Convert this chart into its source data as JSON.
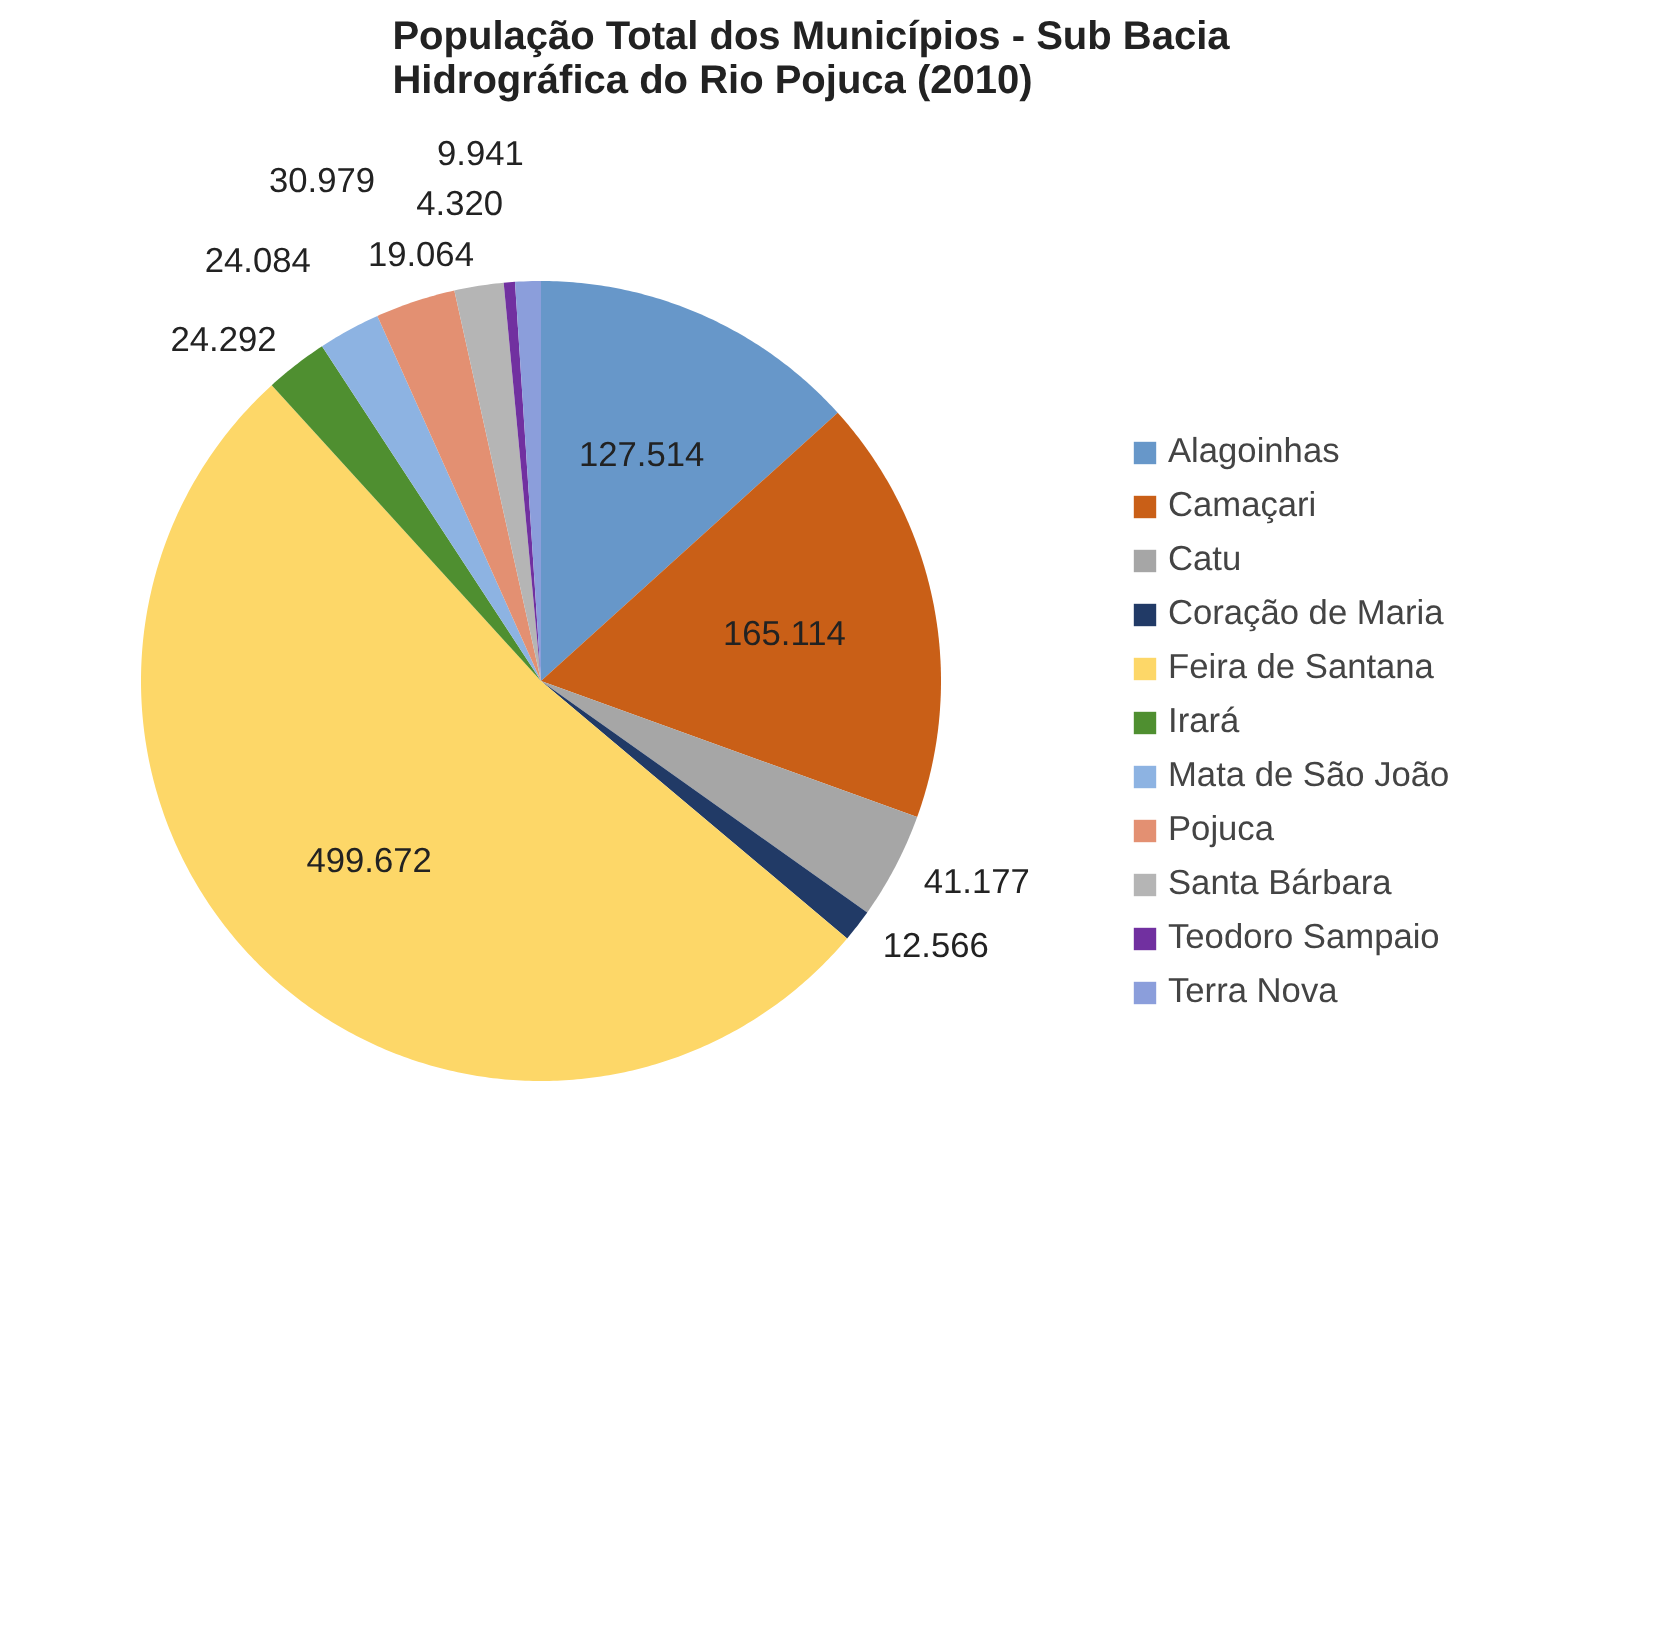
{
  "chart_data": {
    "type": "pie",
    "title": "População Total dos Municípios - Sub Bacia\nHidrográfica do Rio Pojuca (2010)",
    "categories": [
      "Alagoinhas",
      "Camaçari",
      "Catu",
      "Coração de Maria",
      "Feira de Santana",
      "Irará",
      "Mata de São João",
      "Pojuca",
      "Santa Bárbara",
      "Teodoro Sampaio",
      "Terra Nova"
    ],
    "values": [
      127514,
      165114,
      41177,
      12566,
      499672,
      24292,
      24084,
      30979,
      19064,
      4320,
      9941
    ],
    "value_labels": [
      "127.514",
      "165.114",
      "41.177",
      "12.566",
      "499.672",
      "24.292",
      "24.084",
      "30.979",
      "19.064",
      "4.320",
      "9.941"
    ],
    "colors": [
      "#6797c9",
      "#c95f17",
      "#a6a6a6",
      "#213a66",
      "#fdd768",
      "#4f8f30",
      "#8db3e2",
      "#e39072",
      "#b5b5b5",
      "#7130a0",
      "#8b9edb"
    ],
    "legend": "right"
  }
}
